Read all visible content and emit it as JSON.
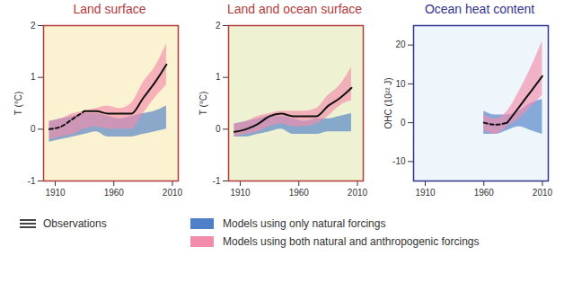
{
  "chart_data": [
    {
      "type": "line",
      "title": "Land surface",
      "ylabel": "T (°C)",
      "x": [
        1905,
        1915,
        1925,
        1935,
        1945,
        1955,
        1965,
        1975,
        1985,
        1995,
        2005
      ],
      "xlim": [
        1900,
        2015
      ],
      "xticks": [
        1910,
        1960,
        2010
      ],
      "ylim": [
        -1,
        2
      ],
      "yticks": [
        -1,
        0,
        1,
        2
      ],
      "series": [
        {
          "name": "Models using only natural forcings",
          "type": "band",
          "color": "#4f7fc6",
          "lower": [
            -0.25,
            -0.2,
            -0.15,
            -0.1,
            -0.05,
            -0.15,
            -0.15,
            -0.15,
            -0.1,
            -0.05,
            0.0
          ],
          "upper": [
            0.15,
            0.2,
            0.25,
            0.3,
            0.3,
            0.25,
            0.2,
            0.25,
            0.3,
            0.35,
            0.45
          ]
        },
        {
          "name": "Models using both natural and anthropogenic forcings",
          "type": "band",
          "color": "#f28cab",
          "lower": [
            -0.2,
            -0.15,
            -0.1,
            0.0,
            0.05,
            0.0,
            0.0,
            0.0,
            0.3,
            0.6,
            0.85
          ],
          "upper": [
            0.15,
            0.2,
            0.3,
            0.35,
            0.4,
            0.45,
            0.4,
            0.5,
            0.9,
            1.2,
            1.65
          ]
        },
        {
          "name": "Observations",
          "type": "line",
          "color": "#111111",
          "line_style": "dashed",
          "values": [
            0.0,
            0.05,
            0.2,
            0.35,
            null,
            null,
            null,
            null,
            null,
            null,
            null
          ]
        },
        {
          "name": "Observations",
          "type": "line",
          "color": "#111111",
          "line_style": "solid",
          "values": [
            null,
            null,
            null,
            0.35,
            0.35,
            0.3,
            0.3,
            0.3,
            0.6,
            0.9,
            1.25
          ]
        }
      ]
    },
    {
      "type": "line",
      "title": "Land and ocean surface",
      "ylabel": "T (°C)",
      "x": [
        1905,
        1915,
        1925,
        1935,
        1945,
        1955,
        1965,
        1975,
        1985,
        1995,
        2005
      ],
      "xlim": [
        1900,
        2015
      ],
      "xticks": [
        1910,
        1960,
        2010
      ],
      "ylim": [
        -1,
        2
      ],
      "yticks": [
        -1,
        0,
        1,
        2
      ],
      "series": [
        {
          "name": "Models using only natural forcings",
          "type": "band",
          "color": "#4f7fc6",
          "lower": [
            -0.15,
            -0.15,
            -0.1,
            -0.05,
            0.0,
            -0.1,
            -0.1,
            -0.1,
            -0.05,
            -0.05,
            -0.05
          ],
          "upper": [
            0.1,
            0.15,
            0.2,
            0.25,
            0.25,
            0.2,
            0.15,
            0.2,
            0.2,
            0.25,
            0.3
          ]
        },
        {
          "name": "Models using both natural and anthropogenic forcings",
          "type": "band",
          "color": "#f28cab",
          "lower": [
            -0.15,
            -0.1,
            -0.05,
            0.05,
            0.1,
            0.05,
            0.05,
            0.1,
            0.25,
            0.45,
            0.55
          ],
          "upper": [
            0.1,
            0.15,
            0.25,
            0.3,
            0.35,
            0.35,
            0.35,
            0.4,
            0.65,
            0.85,
            1.2
          ]
        },
        {
          "name": "Observations",
          "type": "line",
          "color": "#111111",
          "line_style": "solid",
          "values": [
            -0.05,
            0.0,
            0.1,
            0.25,
            0.3,
            0.25,
            0.25,
            0.25,
            0.45,
            0.6,
            0.8
          ]
        }
      ]
    },
    {
      "type": "line",
      "title": "Ocean heat content",
      "ylabel": "OHC (10²² J)",
      "x": [
        1960,
        1970,
        1980,
        1990,
        2000,
        2010
      ],
      "xlim": [
        1900,
        2015
      ],
      "xticks": [
        1910,
        1960,
        2010
      ],
      "ylim": [
        -15,
        25
      ],
      "yticks": [
        -10,
        0,
        10,
        20
      ],
      "series": [
        {
          "name": "Models using only natural forcings",
          "type": "band",
          "color": "#4f7fc6",
          "lower": [
            -3,
            -3,
            -2,
            -1,
            -2,
            -3
          ],
          "upper": [
            3,
            2,
            2,
            3,
            5,
            6
          ]
        },
        {
          "name": "Models using both natural and anthropogenic forcings",
          "type": "band",
          "color": "#f28cab",
          "lower": [
            -2,
            -3,
            -1,
            1,
            4,
            7
          ],
          "upper": [
            2,
            1,
            3,
            8,
            14,
            21
          ]
        },
        {
          "name": "Observations",
          "type": "line",
          "color": "#111111",
          "line_style": "dashed",
          "values": [
            0,
            -0.5,
            0,
            null,
            null,
            null
          ]
        },
        {
          "name": "Observations",
          "type": "line",
          "color": "#111111",
          "line_style": "solid",
          "values": [
            null,
            null,
            0,
            4,
            8,
            12
          ]
        }
      ]
    }
  ]
}
